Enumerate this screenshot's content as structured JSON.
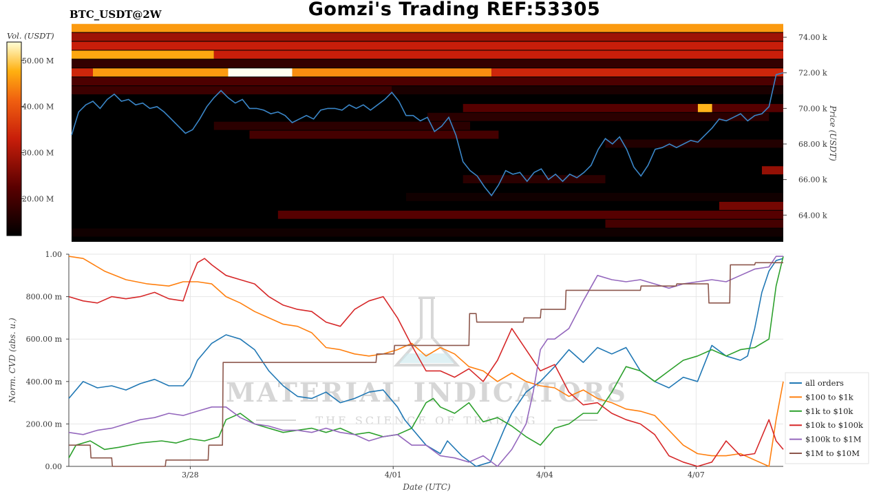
{
  "header": {
    "title": "Gomzi's Trading REF:53305",
    "symbol": "BTC_USDT@2W"
  },
  "colors": {
    "heatmap_bg": "#000000",
    "price_line": "#3a86c8"
  },
  "watermark": {
    "brand": "MATERIAL INDICATORS",
    "tagline": "THE SCIENCE OF TRADING",
    "icon": "flask-icon"
  },
  "chart_data": [
    {
      "type": "heatmap",
      "colorbar": {
        "label": "Vol. (USDT)",
        "range": [
          12,
          54
        ],
        "ticks": [
          {
            "value": 20,
            "label": "20.00 M"
          },
          {
            "value": 30,
            "label": "30.00 M"
          },
          {
            "value": 40,
            "label": "40.00 M"
          },
          {
            "value": 50,
            "label": "50.00 M"
          }
        ]
      },
      "ylabel": "Price (USDT)",
      "ylim": [
        62.5,
        74.7
      ],
      "y_ticks": [
        {
          "value": 64,
          "label": "64.00 k"
        },
        {
          "value": 66,
          "label": "66.00 k"
        },
        {
          "value": 68,
          "label": "68.00 k"
        },
        {
          "value": 70,
          "label": "70.00 k"
        },
        {
          "value": 72,
          "label": "72.00 k"
        },
        {
          "value": 74,
          "label": "74.00 k"
        }
      ],
      "xlim": [
        0,
        100
      ],
      "walls": [
        {
          "price": 74.5,
          "x0": 0,
          "x1": 100,
          "volume": 46
        },
        {
          "price": 74.0,
          "x0": 0,
          "x1": 100,
          "volume": 29
        },
        {
          "price": 73.5,
          "x0": 0,
          "x1": 100,
          "volume": 33
        },
        {
          "price": 73.0,
          "x0": 0,
          "x1": 20,
          "volume": 47
        },
        {
          "price": 73.0,
          "x0": 20,
          "x1": 100,
          "volume": 33
        },
        {
          "price": 72.5,
          "x0": 0,
          "x1": 100,
          "volume": 18
        },
        {
          "price": 72.0,
          "x0": 0,
          "x1": 3,
          "volume": 34
        },
        {
          "price": 72.0,
          "x0": 3,
          "x1": 22,
          "volume": 46
        },
        {
          "price": 72.0,
          "x0": 22,
          "x1": 31,
          "volume": 54
        },
        {
          "price": 72.0,
          "x0": 31,
          "x1": 59,
          "volume": 45
        },
        {
          "price": 72.0,
          "x0": 59,
          "x1": 100,
          "volume": 34
        },
        {
          "price": 71.5,
          "x0": 0,
          "x1": 100,
          "volume": 21
        },
        {
          "price": 71.0,
          "x0": 0,
          "x1": 45,
          "volume": 19
        },
        {
          "price": 71.0,
          "x0": 45,
          "x1": 100,
          "volume": 15
        },
        {
          "price": 70.0,
          "x0": 55,
          "x1": 100,
          "volume": 22
        },
        {
          "price": 70.0,
          "x0": 88,
          "x1": 90,
          "volume": 48
        },
        {
          "price": 69.5,
          "x0": 50,
          "x1": 98,
          "volume": 17
        },
        {
          "price": 69.0,
          "x0": 20,
          "x1": 56,
          "volume": 17
        },
        {
          "price": 68.5,
          "x0": 25,
          "x1": 60,
          "volume": 20
        },
        {
          "price": 68.0,
          "x0": 75,
          "x1": 100,
          "volume": 16
        },
        {
          "price": 66.5,
          "x0": 97,
          "x1": 100,
          "volume": 28
        },
        {
          "price": 66.0,
          "x0": 55,
          "x1": 75,
          "volume": 17
        },
        {
          "price": 65.0,
          "x0": 47,
          "x1": 100,
          "volume": 14
        },
        {
          "price": 64.5,
          "x0": 91,
          "x1": 100,
          "volume": 25
        },
        {
          "price": 64.0,
          "x0": 29,
          "x1": 100,
          "volume": 22
        },
        {
          "price": 63.5,
          "x0": 75,
          "x1": 100,
          "volume": 20
        },
        {
          "price": 63.0,
          "x0": 0,
          "x1": 100,
          "volume": 14
        }
      ],
      "price_series": {
        "x": [
          0,
          1,
          2,
          3,
          4,
          5,
          6,
          7,
          8,
          9,
          10,
          11,
          12,
          13,
          14,
          15,
          16,
          17,
          18,
          19,
          20,
          21,
          22,
          23,
          24,
          25,
          26,
          27,
          28,
          29,
          30,
          31,
          32,
          33,
          34,
          35,
          36,
          37,
          38,
          39,
          40,
          41,
          42,
          43,
          44,
          45,
          46,
          47,
          48,
          49,
          50,
          51,
          52,
          53,
          54,
          55,
          56,
          57,
          58,
          59,
          60,
          61,
          62,
          63,
          64,
          65,
          66,
          67,
          68,
          69,
          70,
          71,
          72,
          73,
          74,
          75,
          76,
          77,
          78,
          79,
          80,
          81,
          82,
          83,
          84,
          85,
          86,
          87,
          88,
          89,
          90,
          91,
          92,
          93,
          94,
          95,
          96,
          97,
          98,
          99,
          100
        ],
        "values": [
          68.5,
          69.8,
          70.2,
          70.4,
          70.0,
          70.5,
          70.8,
          70.4,
          70.5,
          70.2,
          70.3,
          70.0,
          70.1,
          69.8,
          69.4,
          69.0,
          68.6,
          68.8,
          69.4,
          70.1,
          70.6,
          71.0,
          70.6,
          70.3,
          70.5,
          70.0,
          70.0,
          69.9,
          69.7,
          69.8,
          69.6,
          69.2,
          69.4,
          69.6,
          69.4,
          69.9,
          70.0,
          70.0,
          69.9,
          70.2,
          70.0,
          70.2,
          69.9,
          70.2,
          70.5,
          70.9,
          70.4,
          69.6,
          69.6,
          69.3,
          69.5,
          68.7,
          69.0,
          69.5,
          68.5,
          67.0,
          66.5,
          66.2,
          65.6,
          65.1,
          65.7,
          66.5,
          66.3,
          66.4,
          65.9,
          66.4,
          66.6,
          66.0,
          66.3,
          65.9,
          66.3,
          66.1,
          66.4,
          66.8,
          67.7,
          68.3,
          68.0,
          68.4,
          67.7,
          66.7,
          66.2,
          66.8,
          67.7,
          67.8,
          68.0,
          67.8,
          68.0,
          68.2,
          68.1,
          68.5,
          68.9,
          69.4,
          69.3,
          69.5,
          69.7,
          69.3,
          69.6,
          69.7,
          70.1,
          71.9,
          72.0
        ]
      }
    },
    {
      "type": "line",
      "xlabel": "Date (UTC)",
      "ylabel": "Norm. CVD (abs. u.)",
      "ylim": [
        0,
        1
      ],
      "xlim": [
        0,
        100
      ],
      "y_ticks": [
        {
          "value": 0,
          "label": "0.00"
        },
        {
          "value": 0.2,
          "label": "200.00 m"
        },
        {
          "value": 0.4,
          "label": "400.00 m"
        },
        {
          "value": 0.6,
          "label": "600.00 m"
        },
        {
          "value": 0.8,
          "label": "800.00 m"
        },
        {
          "value": 1,
          "label": "1.00"
        }
      ],
      "x_ticks": [
        {
          "value": 17,
          "label": "3/28"
        },
        {
          "value": 45.4,
          "label": "4/01"
        },
        {
          "value": 66.6,
          "label": "4/04"
        },
        {
          "value": 87.8,
          "label": "4/07"
        }
      ],
      "grid": true,
      "legend": "right",
      "series": [
        {
          "name": "all orders",
          "color": "#1f77b4",
          "x": [
            0,
            2,
            4,
            6,
            8,
            10,
            12,
            14,
            16,
            17,
            18,
            20,
            21,
            22,
            24,
            26,
            28,
            30,
            32,
            34,
            36,
            38,
            40,
            42,
            44,
            46,
            47,
            48,
            50,
            52,
            53,
            55,
            57,
            59,
            60,
            61,
            62,
            64,
            66,
            68,
            70,
            72,
            74,
            76,
            78,
            80,
            82,
            84,
            86,
            88,
            90,
            92,
            94,
            95,
            96,
            97,
            98,
            99,
            100
          ],
          "values": [
            0.32,
            0.4,
            0.37,
            0.38,
            0.36,
            0.39,
            0.41,
            0.38,
            0.38,
            0.42,
            0.5,
            0.58,
            0.6,
            0.62,
            0.6,
            0.55,
            0.45,
            0.38,
            0.33,
            0.32,
            0.35,
            0.3,
            0.32,
            0.35,
            0.36,
            0.28,
            0.22,
            0.18,
            0.1,
            0.06,
            0.12,
            0.05,
            0.0,
            0.02,
            0.1,
            0.18,
            0.25,
            0.35,
            0.4,
            0.47,
            0.55,
            0.49,
            0.56,
            0.53,
            0.56,
            0.45,
            0.4,
            0.37,
            0.42,
            0.4,
            0.57,
            0.52,
            0.5,
            0.52,
            0.65,
            0.82,
            0.92,
            0.97,
            0.98
          ]
        },
        {
          "name": "$100 to $1k",
          "color": "#ff7f0e",
          "x": [
            0,
            2,
            5,
            8,
            11,
            14,
            16,
            18,
            20,
            22,
            24,
            26,
            28,
            30,
            32,
            34,
            36,
            38,
            40,
            42,
            44,
            46,
            48,
            50,
            52,
            54,
            56,
            58,
            60,
            62,
            64,
            66,
            68,
            70,
            72,
            74,
            76,
            78,
            80,
            82,
            84,
            86,
            88,
            90,
            92,
            94,
            96,
            98,
            99,
            100
          ],
          "values": [
            0.99,
            0.98,
            0.92,
            0.88,
            0.86,
            0.85,
            0.87,
            0.87,
            0.86,
            0.8,
            0.77,
            0.73,
            0.7,
            0.67,
            0.66,
            0.63,
            0.56,
            0.55,
            0.53,
            0.52,
            0.53,
            0.55,
            0.58,
            0.52,
            0.56,
            0.53,
            0.47,
            0.45,
            0.4,
            0.44,
            0.4,
            0.38,
            0.37,
            0.33,
            0.36,
            0.32,
            0.3,
            0.27,
            0.26,
            0.24,
            0.17,
            0.1,
            0.06,
            0.05,
            0.05,
            0.06,
            0.03,
            0.0,
            0.22,
            0.4
          ]
        },
        {
          "name": "$1k to $10k",
          "color": "#2ca02c",
          "x": [
            0,
            1,
            3,
            5,
            7,
            10,
            13,
            15,
            17,
            19,
            21,
            22,
            24,
            26,
            28,
            30,
            32,
            34,
            36,
            38,
            40,
            42,
            44,
            46,
            48,
            50,
            51,
            52,
            54,
            56,
            58,
            60,
            62,
            64,
            66,
            68,
            70,
            72,
            74,
            76,
            78,
            80,
            82,
            84,
            86,
            88,
            90,
            92,
            94,
            96,
            98,
            99,
            100
          ],
          "values": [
            0.04,
            0.1,
            0.12,
            0.08,
            0.09,
            0.11,
            0.12,
            0.11,
            0.13,
            0.12,
            0.14,
            0.22,
            0.25,
            0.2,
            0.18,
            0.16,
            0.17,
            0.18,
            0.16,
            0.18,
            0.15,
            0.16,
            0.14,
            0.15,
            0.18,
            0.3,
            0.32,
            0.28,
            0.25,
            0.3,
            0.21,
            0.23,
            0.19,
            0.14,
            0.1,
            0.18,
            0.2,
            0.25,
            0.25,
            0.35,
            0.47,
            0.45,
            0.4,
            0.45,
            0.5,
            0.52,
            0.55,
            0.52,
            0.55,
            0.56,
            0.6,
            0.85,
            0.99
          ]
        },
        {
          "name": "$10k to $100k",
          "color": "#d62728",
          "x": [
            0,
            2,
            4,
            6,
            8,
            10,
            12,
            14,
            16,
            17,
            18,
            19,
            20,
            22,
            24,
            26,
            28,
            30,
            32,
            34,
            36,
            38,
            40,
            42,
            44,
            46,
            48,
            50,
            52,
            54,
            56,
            58,
            60,
            62,
            64,
            66,
            68,
            70,
            72,
            74,
            76,
            78,
            80,
            82,
            84,
            86,
            88,
            90,
            92,
            94,
            96,
            98,
            99,
            100
          ],
          "values": [
            0.8,
            0.78,
            0.77,
            0.8,
            0.79,
            0.8,
            0.82,
            0.79,
            0.78,
            0.88,
            0.96,
            0.98,
            0.95,
            0.9,
            0.88,
            0.86,
            0.8,
            0.76,
            0.74,
            0.73,
            0.68,
            0.66,
            0.74,
            0.78,
            0.8,
            0.7,
            0.57,
            0.45,
            0.45,
            0.42,
            0.46,
            0.4,
            0.5,
            0.65,
            0.55,
            0.45,
            0.48,
            0.35,
            0.29,
            0.3,
            0.25,
            0.22,
            0.2,
            0.15,
            0.05,
            0.02,
            0.0,
            0.02,
            0.12,
            0.05,
            0.06,
            0.22,
            0.12,
            0.08
          ]
        },
        {
          "name": "$100k to $1M",
          "color": "#9467bd",
          "x": [
            0,
            2,
            4,
            6,
            8,
            10,
            12,
            14,
            16,
            18,
            20,
            22,
            24,
            26,
            28,
            30,
            32,
            34,
            36,
            38,
            40,
            42,
            44,
            46,
            48,
            50,
            52,
            54,
            56,
            58,
            60,
            62,
            64,
            65,
            66,
            67,
            68,
            70,
            72,
            74,
            76,
            78,
            80,
            82,
            84,
            86,
            88,
            90,
            92,
            94,
            96,
            98,
            99,
            100
          ],
          "values": [
            0.16,
            0.15,
            0.17,
            0.18,
            0.2,
            0.22,
            0.23,
            0.25,
            0.24,
            0.26,
            0.28,
            0.28,
            0.23,
            0.2,
            0.19,
            0.17,
            0.17,
            0.16,
            0.18,
            0.16,
            0.15,
            0.12,
            0.14,
            0.15,
            0.1,
            0.1,
            0.05,
            0.04,
            0.02,
            0.05,
            0.0,
            0.08,
            0.2,
            0.35,
            0.55,
            0.6,
            0.6,
            0.65,
            0.78,
            0.9,
            0.88,
            0.87,
            0.88,
            0.86,
            0.84,
            0.86,
            0.87,
            0.88,
            0.87,
            0.9,
            0.93,
            0.94,
            0.99,
            0.99
          ]
        },
        {
          "name": "$1M to $10M",
          "color": "#8c564b",
          "x": [
            0,
            3,
            3.1,
            6,
            6.1,
            13.5,
            13.6,
            19.5,
            19.6,
            21.5,
            21.6,
            43,
            43.1,
            45.5,
            45.6,
            56,
            56.1,
            57,
            57.1,
            63.6,
            63.7,
            66,
            66.1,
            69.5,
            69.6,
            80,
            80.1,
            85,
            85.1,
            86,
            86.1,
            89.5,
            89.6,
            92.5,
            92.6,
            96,
            96.1,
            100
          ],
          "values": [
            0.1,
            0.1,
            0.04,
            0.04,
            0.0,
            0.0,
            0.03,
            0.03,
            0.1,
            0.1,
            0.49,
            0.49,
            0.53,
            0.53,
            0.57,
            0.57,
            0.72,
            0.72,
            0.68,
            0.68,
            0.7,
            0.7,
            0.74,
            0.74,
            0.83,
            0.83,
            0.85,
            0.85,
            0.86,
            0.86,
            0.86,
            0.86,
            0.77,
            0.77,
            0.95,
            0.95,
            0.96,
            0.96
          ]
        }
      ]
    }
  ]
}
